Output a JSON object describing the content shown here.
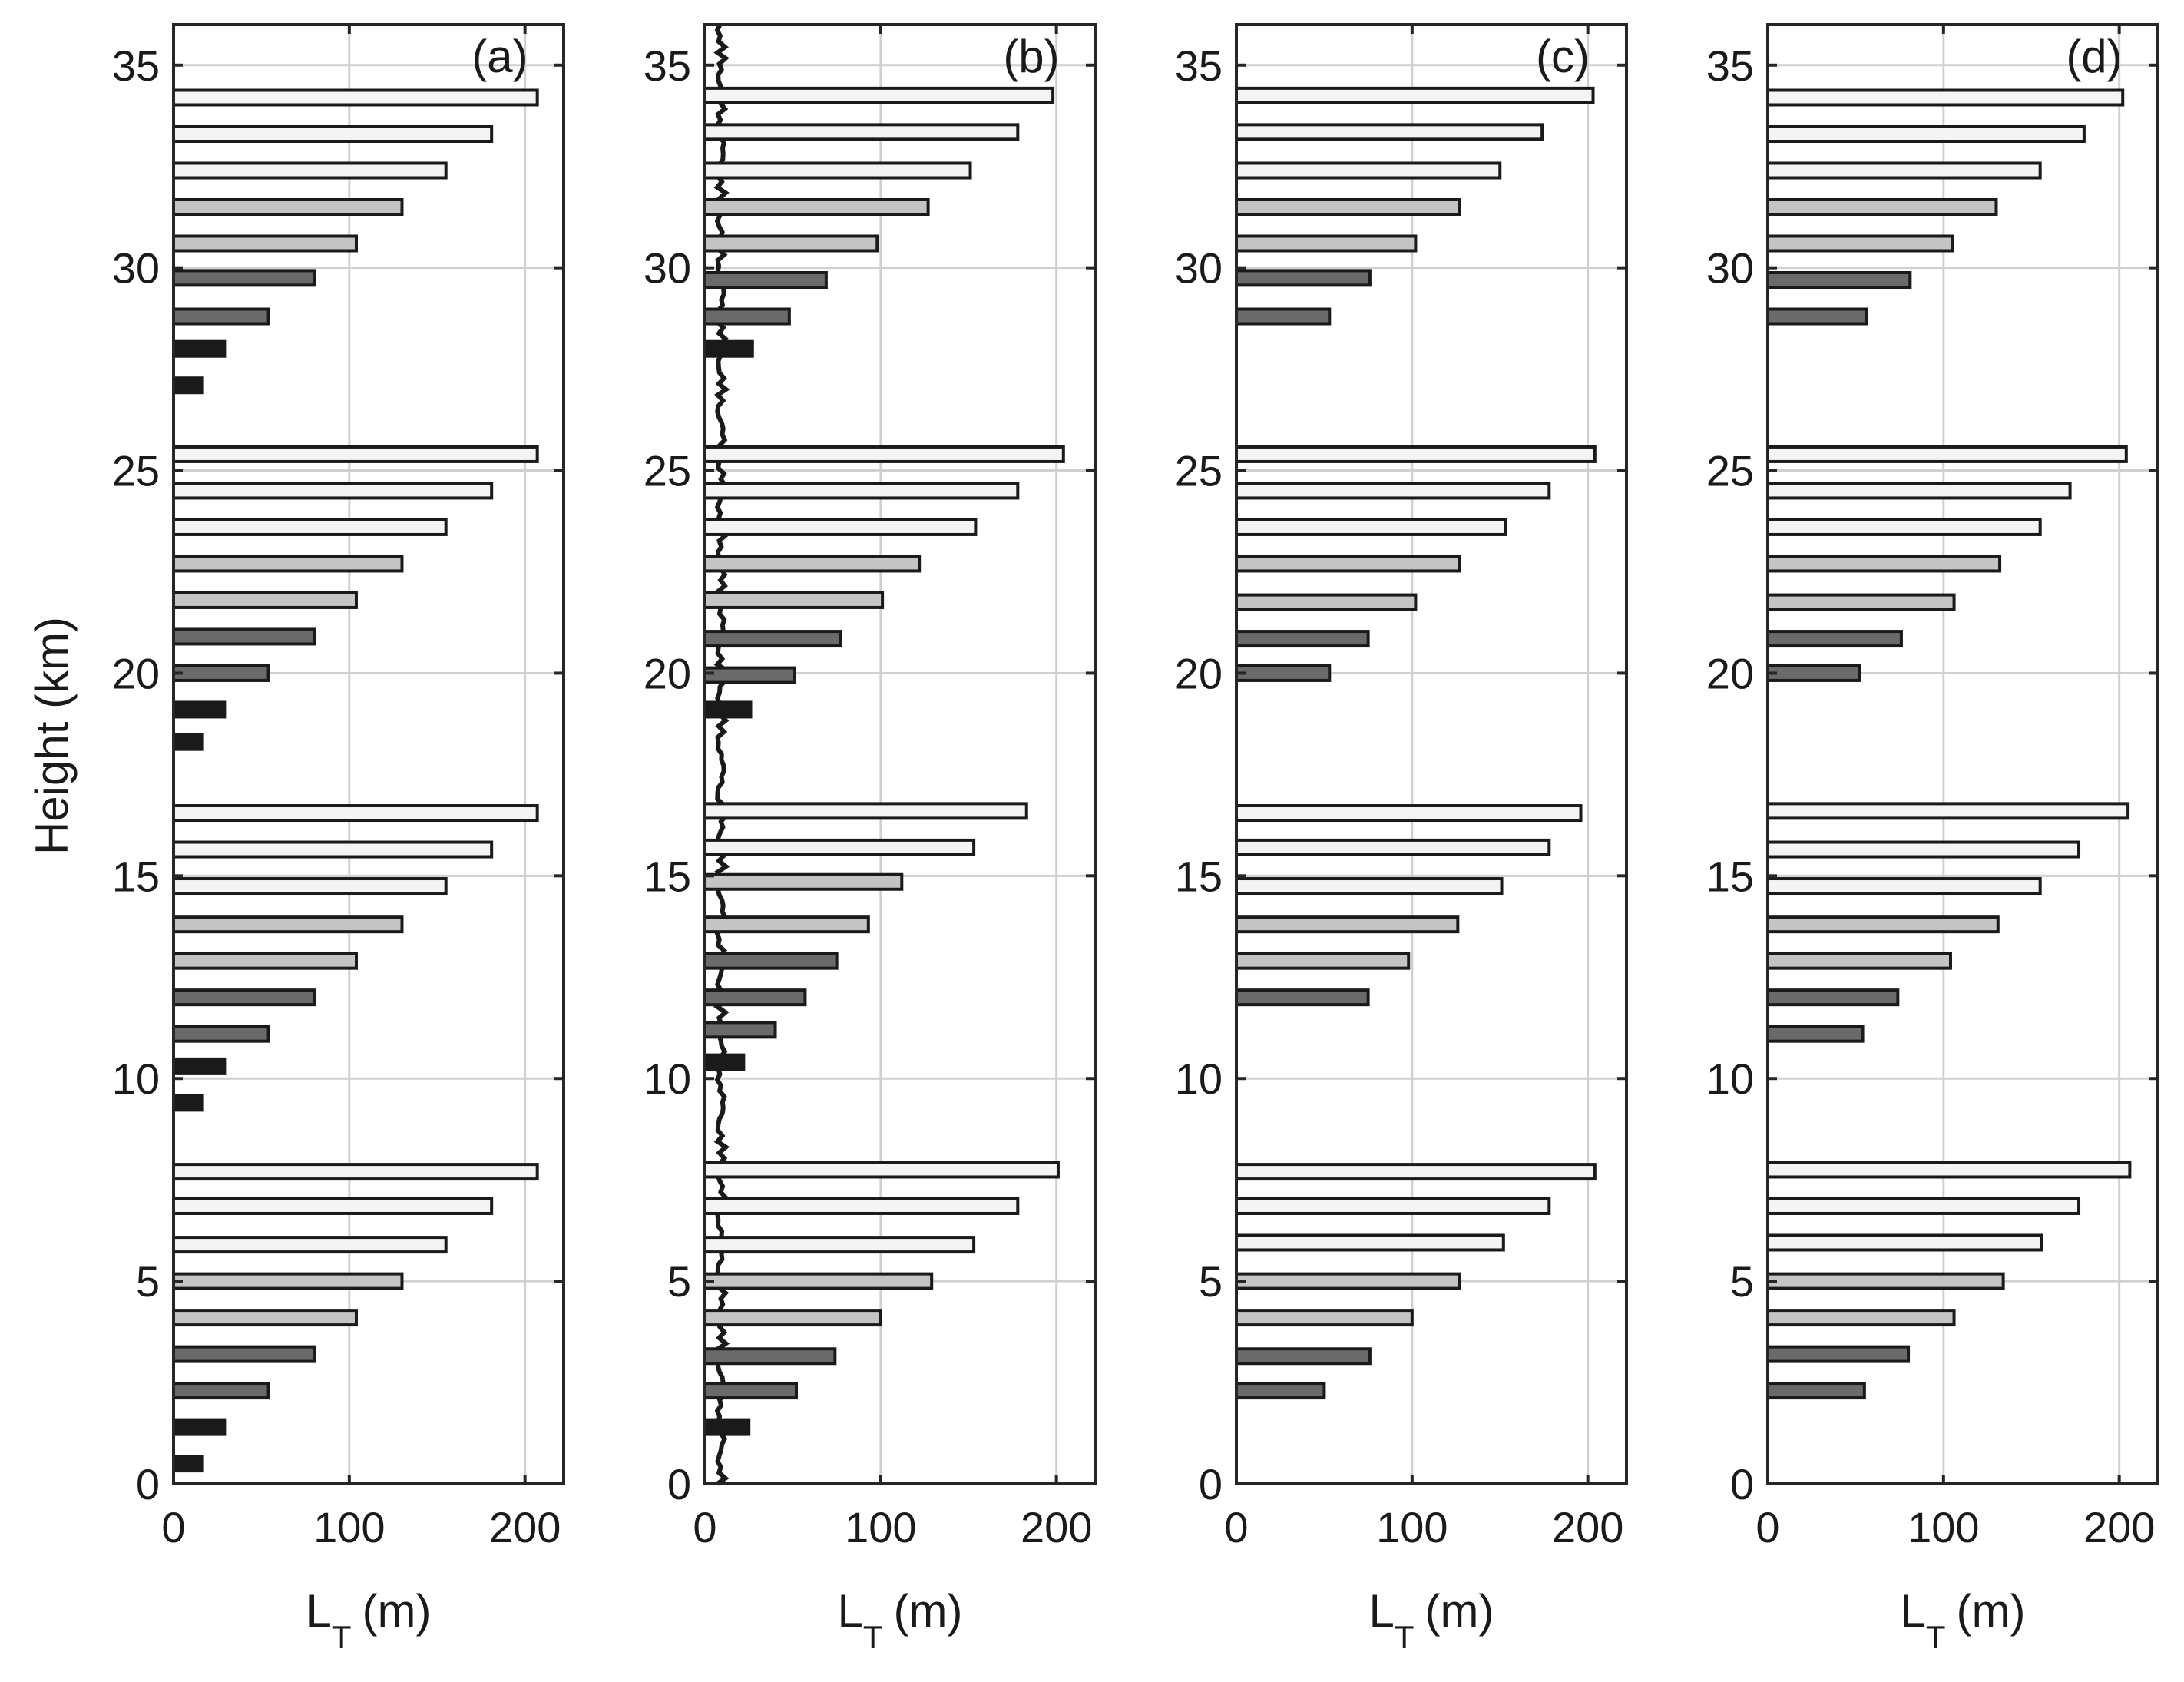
{
  "figure": {
    "ylabel": "Height (km)",
    "xlabel_main": "L",
    "xlabel_sub": "T",
    "xlabel_unit": "(m)"
  },
  "chart_data": [
    {
      "type": "bar",
      "orientation": "horizontal",
      "panel": "(a)",
      "xlabel": "L_T (m)",
      "ylabel": "Height (km)",
      "xlim": [
        0,
        222
      ],
      "ylim": [
        0,
        36
      ],
      "xticks": [
        0,
        100,
        200
      ],
      "yticks": [
        0,
        5,
        10,
        15,
        20,
        25,
        30,
        35
      ],
      "grid": true,
      "bars": [
        {
          "y": 0.5,
          "value": 16
        },
        {
          "y": 1.4,
          "value": 29
        },
        {
          "y": 2.3,
          "value": 54
        },
        {
          "y": 3.2,
          "value": 80
        },
        {
          "y": 4.1,
          "value": 104
        },
        {
          "y": 5.0,
          "value": 130
        },
        {
          "y": 5.9,
          "value": 155
        },
        {
          "y": 6.85,
          "value": 181
        },
        {
          "y": 7.7,
          "value": 207
        },
        {
          "y": 9.4,
          "value": 16
        },
        {
          "y": 10.3,
          "value": 29
        },
        {
          "y": 11.1,
          "value": 54
        },
        {
          "y": 12.0,
          "value": 80
        },
        {
          "y": 12.9,
          "value": 104
        },
        {
          "y": 13.8,
          "value": 130
        },
        {
          "y": 14.75,
          "value": 155
        },
        {
          "y": 15.65,
          "value": 181
        },
        {
          "y": 16.55,
          "value": 207
        },
        {
          "y": 18.3,
          "value": 16
        },
        {
          "y": 19.1,
          "value": 29
        },
        {
          "y": 20.0,
          "value": 54
        },
        {
          "y": 20.9,
          "value": 80
        },
        {
          "y": 21.8,
          "value": 104
        },
        {
          "y": 22.7,
          "value": 130
        },
        {
          "y": 23.6,
          "value": 155
        },
        {
          "y": 24.5,
          "value": 181
        },
        {
          "y": 25.4,
          "value": 207
        },
        {
          "y": 27.1,
          "value": 16
        },
        {
          "y": 28.0,
          "value": 29
        },
        {
          "y": 28.8,
          "value": 54
        },
        {
          "y": 29.75,
          "value": 80
        },
        {
          "y": 30.6,
          "value": 104
        },
        {
          "y": 31.5,
          "value": 130
        },
        {
          "y": 32.4,
          "value": 155
        },
        {
          "y": 33.3,
          "value": 181
        },
        {
          "y": 34.2,
          "value": 207
        }
      ]
    },
    {
      "type": "bar",
      "orientation": "horizontal",
      "panel": "(b)",
      "xlabel": "L_T (m)",
      "ylabel": "",
      "xlim": [
        0,
        222
      ],
      "ylim": [
        0,
        36
      ],
      "xticks": [
        0,
        100,
        200
      ],
      "yticks": [
        0,
        5,
        10,
        15,
        20,
        25,
        30,
        35
      ],
      "grid": true,
      "bars": [
        {
          "y": 1.4,
          "value": 25
        },
        {
          "y": 2.3,
          "value": 52
        },
        {
          "y": 3.15,
          "value": 74
        },
        {
          "y": 4.1,
          "value": 100
        },
        {
          "y": 5.0,
          "value": 129
        },
        {
          "y": 5.9,
          "value": 153
        },
        {
          "y": 6.85,
          "value": 178
        },
        {
          "y": 7.75,
          "value": 201
        },
        {
          "y": 10.4,
          "value": 22
        },
        {
          "y": 11.2,
          "value": 40
        },
        {
          "y": 12.0,
          "value": 57
        },
        {
          "y": 12.9,
          "value": 75
        },
        {
          "y": 13.8,
          "value": 93
        },
        {
          "y": 14.85,
          "value": 112
        },
        {
          "y": 15.7,
          "value": 153
        },
        {
          "y": 16.6,
          "value": 183
        },
        {
          "y": 19.1,
          "value": 26
        },
        {
          "y": 19.95,
          "value": 51
        },
        {
          "y": 20.85,
          "value": 77
        },
        {
          "y": 21.8,
          "value": 101
        },
        {
          "y": 22.7,
          "value": 122
        },
        {
          "y": 23.6,
          "value": 154
        },
        {
          "y": 24.5,
          "value": 178
        },
        {
          "y": 25.4,
          "value": 204
        },
        {
          "y": 28.0,
          "value": 27
        },
        {
          "y": 28.8,
          "value": 48
        },
        {
          "y": 29.7,
          "value": 69
        },
        {
          "y": 30.6,
          "value": 98
        },
        {
          "y": 31.5,
          "value": 127
        },
        {
          "y": 32.4,
          "value": 151
        },
        {
          "y": 33.35,
          "value": 178
        },
        {
          "y": 34.25,
          "value": 198
        }
      ],
      "background_band": {
        "value_approx": 10,
        "y_range": [
          0,
          36
        ]
      }
    },
    {
      "type": "bar",
      "orientation": "horizontal",
      "panel": "(c)",
      "xlabel": "L_T (m)",
      "ylabel": "",
      "xlim": [
        0,
        222
      ],
      "ylim": [
        0,
        36
      ],
      "xticks": [
        0,
        100,
        200
      ],
      "yticks": [
        0,
        5,
        10,
        15,
        20,
        25,
        30,
        35
      ],
      "grid": true,
      "bars": [
        {
          "y": 2.3,
          "value": 50
        },
        {
          "y": 3.15,
          "value": 76
        },
        {
          "y": 4.1,
          "value": 100
        },
        {
          "y": 5.0,
          "value": 127
        },
        {
          "y": 5.95,
          "value": 152
        },
        {
          "y": 6.85,
          "value": 178
        },
        {
          "y": 7.7,
          "value": 204
        },
        {
          "y": 12.0,
          "value": 75
        },
        {
          "y": 12.9,
          "value": 98
        },
        {
          "y": 13.8,
          "value": 126
        },
        {
          "y": 14.75,
          "value": 151
        },
        {
          "y": 15.7,
          "value": 178
        },
        {
          "y": 16.55,
          "value": 196
        },
        {
          "y": 20.0,
          "value": 53
        },
        {
          "y": 20.85,
          "value": 75
        },
        {
          "y": 21.75,
          "value": 102
        },
        {
          "y": 22.7,
          "value": 127
        },
        {
          "y": 23.6,
          "value": 153
        },
        {
          "y": 24.5,
          "value": 178
        },
        {
          "y": 25.4,
          "value": 204
        },
        {
          "y": 28.8,
          "value": 53
        },
        {
          "y": 29.75,
          "value": 76
        },
        {
          "y": 30.6,
          "value": 102
        },
        {
          "y": 31.5,
          "value": 127
        },
        {
          "y": 32.4,
          "value": 150
        },
        {
          "y": 33.35,
          "value": 174
        },
        {
          "y": 34.25,
          "value": 203
        }
      ]
    },
    {
      "type": "bar",
      "orientation": "horizontal",
      "panel": "(d)",
      "xlabel": "L_T (m)",
      "ylabel": "",
      "xlim": [
        0,
        222
      ],
      "ylim": [
        0,
        36
      ],
      "xticks": [
        0,
        100,
        200
      ],
      "yticks": [
        0,
        5,
        10,
        15,
        20,
        25,
        30,
        35
      ],
      "grid": true,
      "bars": [
        {
          "y": 2.3,
          "value": 55
        },
        {
          "y": 3.2,
          "value": 80
        },
        {
          "y": 4.1,
          "value": 106
        },
        {
          "y": 5.0,
          "value": 134
        },
        {
          "y": 5.95,
          "value": 156
        },
        {
          "y": 6.85,
          "value": 177
        },
        {
          "y": 7.75,
          "value": 206
        },
        {
          "y": 11.1,
          "value": 54
        },
        {
          "y": 12.0,
          "value": 74
        },
        {
          "y": 12.9,
          "value": 104
        },
        {
          "y": 13.8,
          "value": 131
        },
        {
          "y": 14.75,
          "value": 155
        },
        {
          "y": 15.65,
          "value": 177
        },
        {
          "y": 16.6,
          "value": 205
        },
        {
          "y": 20.0,
          "value": 52
        },
        {
          "y": 20.85,
          "value": 76
        },
        {
          "y": 21.75,
          "value": 106
        },
        {
          "y": 22.7,
          "value": 132
        },
        {
          "y": 23.6,
          "value": 155
        },
        {
          "y": 24.5,
          "value": 172
        },
        {
          "y": 25.4,
          "value": 204
        },
        {
          "y": 28.8,
          "value": 56
        },
        {
          "y": 29.7,
          "value": 81
        },
        {
          "y": 30.6,
          "value": 105
        },
        {
          "y": 31.5,
          "value": 130
        },
        {
          "y": 32.4,
          "value": 155
        },
        {
          "y": 33.3,
          "value": 180
        },
        {
          "y": 34.2,
          "value": 202
        }
      ]
    }
  ]
}
